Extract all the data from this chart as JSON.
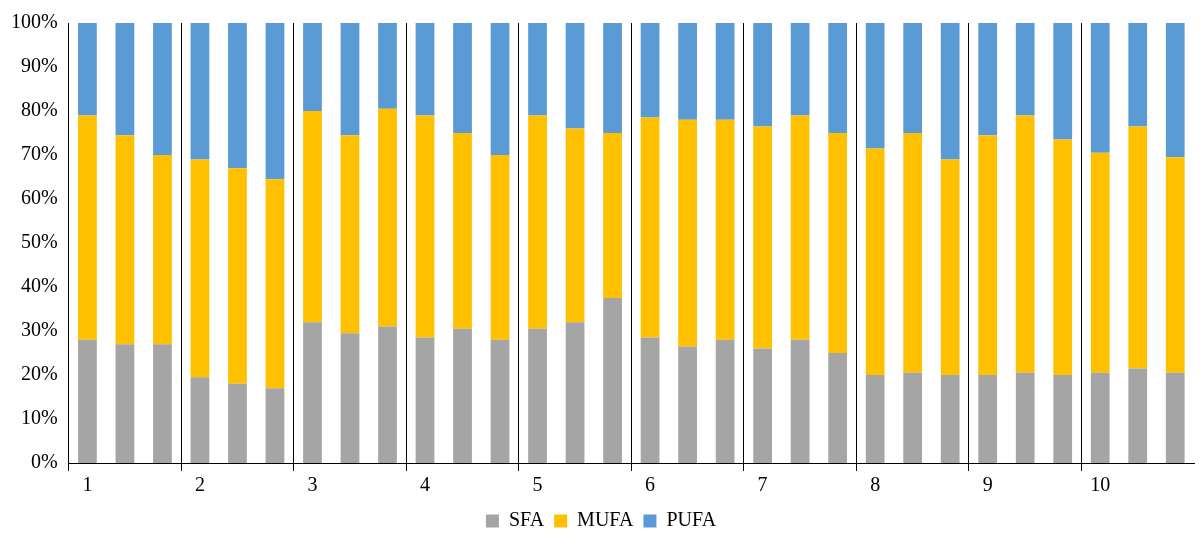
{
  "chart_data": {
    "type": "bar",
    "stacked": true,
    "categories": [
      "1",
      null,
      null,
      "2",
      null,
      null,
      "3",
      null,
      null,
      "4",
      null,
      null,
      "5",
      null,
      null,
      "6",
      null,
      null,
      "7",
      null,
      null,
      "8",
      null,
      null,
      "9",
      null,
      null,
      "10",
      null,
      null
    ],
    "series": [
      {
        "name": "SFA",
        "color": "#a5a5a5",
        "values": [
          28,
          27,
          27,
          19.5,
          18,
          17,
          32,
          29.5,
          31,
          28.5,
          30.5,
          28,
          30.5,
          32,
          37.5,
          28.5,
          26.5,
          28,
          26,
          28,
          25,
          20,
          20.5,
          20,
          20,
          20.5,
          20,
          20.5,
          21.5,
          20.5
        ]
      },
      {
        "name": "MUFA",
        "color": "#ffc000",
        "values": [
          51,
          47.5,
          43,
          49.5,
          49,
          47.5,
          48,
          45,
          49.5,
          50.5,
          44.5,
          42,
          48.5,
          44,
          37.5,
          50,
          51.5,
          50,
          50.5,
          51,
          50,
          51.5,
          54.5,
          49,
          54.5,
          58.5,
          53.5,
          50,
          55,
          49
        ]
      },
      {
        "name": "PUFA",
        "color": "#5b9bd5",
        "values": [
          21,
          25.5,
          30,
          31,
          33,
          35.5,
          20,
          25.5,
          19.5,
          21,
          25,
          30,
          21,
          24,
          25,
          21.5,
          22,
          22,
          23.5,
          21,
          25,
          28.5,
          25,
          31,
          25.5,
          21,
          26.5,
          29.5,
          23.5,
          30.5
        ]
      }
    ],
    "ylim": [
      0,
      100
    ],
    "yticks": [
      {
        "value": 0,
        "label": "0%"
      },
      {
        "value": 10,
        "label": "10%"
      },
      {
        "value": 20,
        "label": "20%"
      },
      {
        "value": 30,
        "label": "30%"
      },
      {
        "value": 40,
        "label": "40%"
      },
      {
        "value": 50,
        "label": "50%"
      },
      {
        "value": 60,
        "label": "60%"
      },
      {
        "value": 70,
        "label": "70%"
      },
      {
        "value": 80,
        "label": "80%"
      },
      {
        "value": 90,
        "label": "90%"
      },
      {
        "value": 100,
        "label": "100%"
      }
    ],
    "grid": "x",
    "legend": "bottom"
  }
}
